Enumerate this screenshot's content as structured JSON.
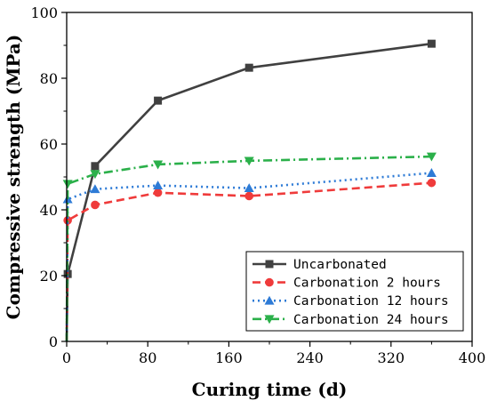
{
  "chart_data": {
    "type": "line",
    "xlabel": "Curing time (d)",
    "ylabel": "Compressive strength  (MPa)",
    "xlim": [
      0,
      400
    ],
    "ylim": [
      0,
      100
    ],
    "x_ticks": [
      0,
      80,
      160,
      240,
      320,
      400
    ],
    "y_ticks": [
      0,
      20,
      40,
      60,
      80,
      100
    ],
    "grid": false,
    "legend_position": "bottom-right",
    "series": [
      {
        "name": "Uncarbonated",
        "color": "#404040",
        "line_style": "solid",
        "marker": "square",
        "x": [
          0,
          1,
          28,
          90,
          180,
          360
        ],
        "y": [
          0,
          20.5,
          53.3,
          73.2,
          83.2,
          90.5
        ]
      },
      {
        "name": "Carbonation 2 hours",
        "color": "#ef3b3b",
        "line_style": "dash",
        "marker": "circle",
        "x": [
          0,
          1,
          28,
          90,
          180,
          360
        ],
        "y": [
          0,
          36.8,
          41.5,
          45.2,
          44.2,
          48.2
        ]
      },
      {
        "name": "Carbonation 12 hours",
        "color": "#2e7bd6",
        "line_style": "dot",
        "marker": "triangle-up",
        "x": [
          0,
          1,
          28,
          90,
          180,
          360
        ],
        "y": [
          0,
          43.2,
          46.3,
          47.4,
          46.6,
          51.2
        ]
      },
      {
        "name": "Carbonation 24 hours",
        "color": "#2bb04a",
        "line_style": "dashdot",
        "marker": "triangle-down",
        "x": [
          0,
          1,
          28,
          90,
          180,
          360
        ],
        "y": [
          0,
          47.9,
          50.9,
          53.8,
          54.9,
          56.2
        ]
      }
    ]
  }
}
